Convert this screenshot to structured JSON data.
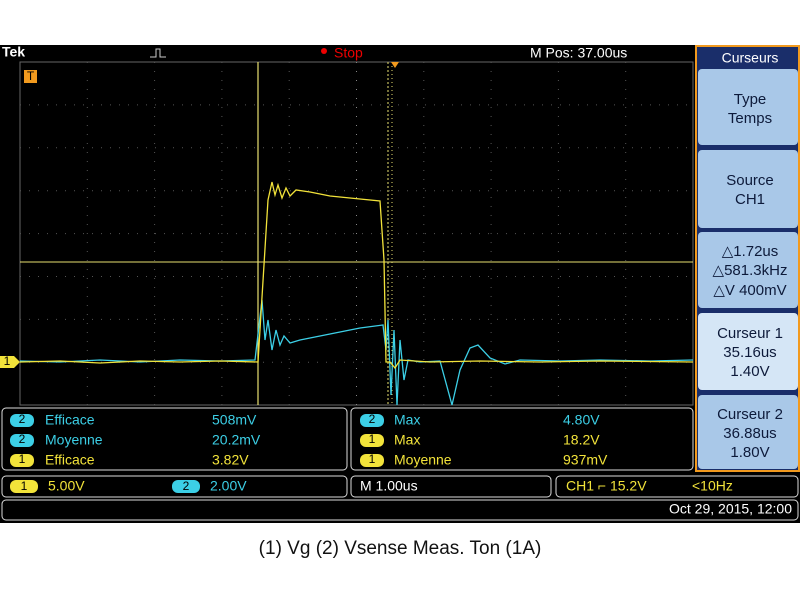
{
  "top_bar": {
    "brand": "Tek",
    "status": "Stop",
    "position": "M Pos: 37.00us"
  },
  "markers": {
    "channel": "1",
    "trigger": "T"
  },
  "side_menu": {
    "title": "Curseurs",
    "buttons": [
      [
        "Type",
        "Temps"
      ],
      [
        "Source",
        "CH1"
      ],
      [
        "△1.72us",
        "△581.3kHz",
        "△V 400mV"
      ],
      [
        "Curseur 1",
        "35.16us",
        "1.40V"
      ],
      [
        "Curseur 2",
        "36.88us",
        "1.80V"
      ]
    ]
  },
  "measurements": {
    "left": [
      {
        "channel": "2",
        "label": "Efficace",
        "value": "508mV"
      },
      {
        "channel": "2",
        "label": "Moyenne",
        "value": "20.2mV"
      },
      {
        "channel": "1",
        "label": "Efficace",
        "value": "3.82V"
      }
    ],
    "right": [
      {
        "channel": "2",
        "label": "Max",
        "value": "4.80V"
      },
      {
        "channel": "1",
        "label": "Max",
        "value": "18.2V"
      },
      {
        "channel": "1",
        "label": "Moyenne",
        "value": "937mV"
      }
    ]
  },
  "scale_bar": {
    "ch1": {
      "channel": "1",
      "scale": "5.00V"
    },
    "ch2": {
      "channel": "2",
      "scale": "2.00V"
    },
    "timebase": "M 1.00us",
    "trigger": "CH1 ⌐ 15.2V",
    "frequency": "<10Hz"
  },
  "date": "Oct 29, 2015, 12:00",
  "caption": "(1) Vg (2) Vsense Meas. Ton (1A)"
}
